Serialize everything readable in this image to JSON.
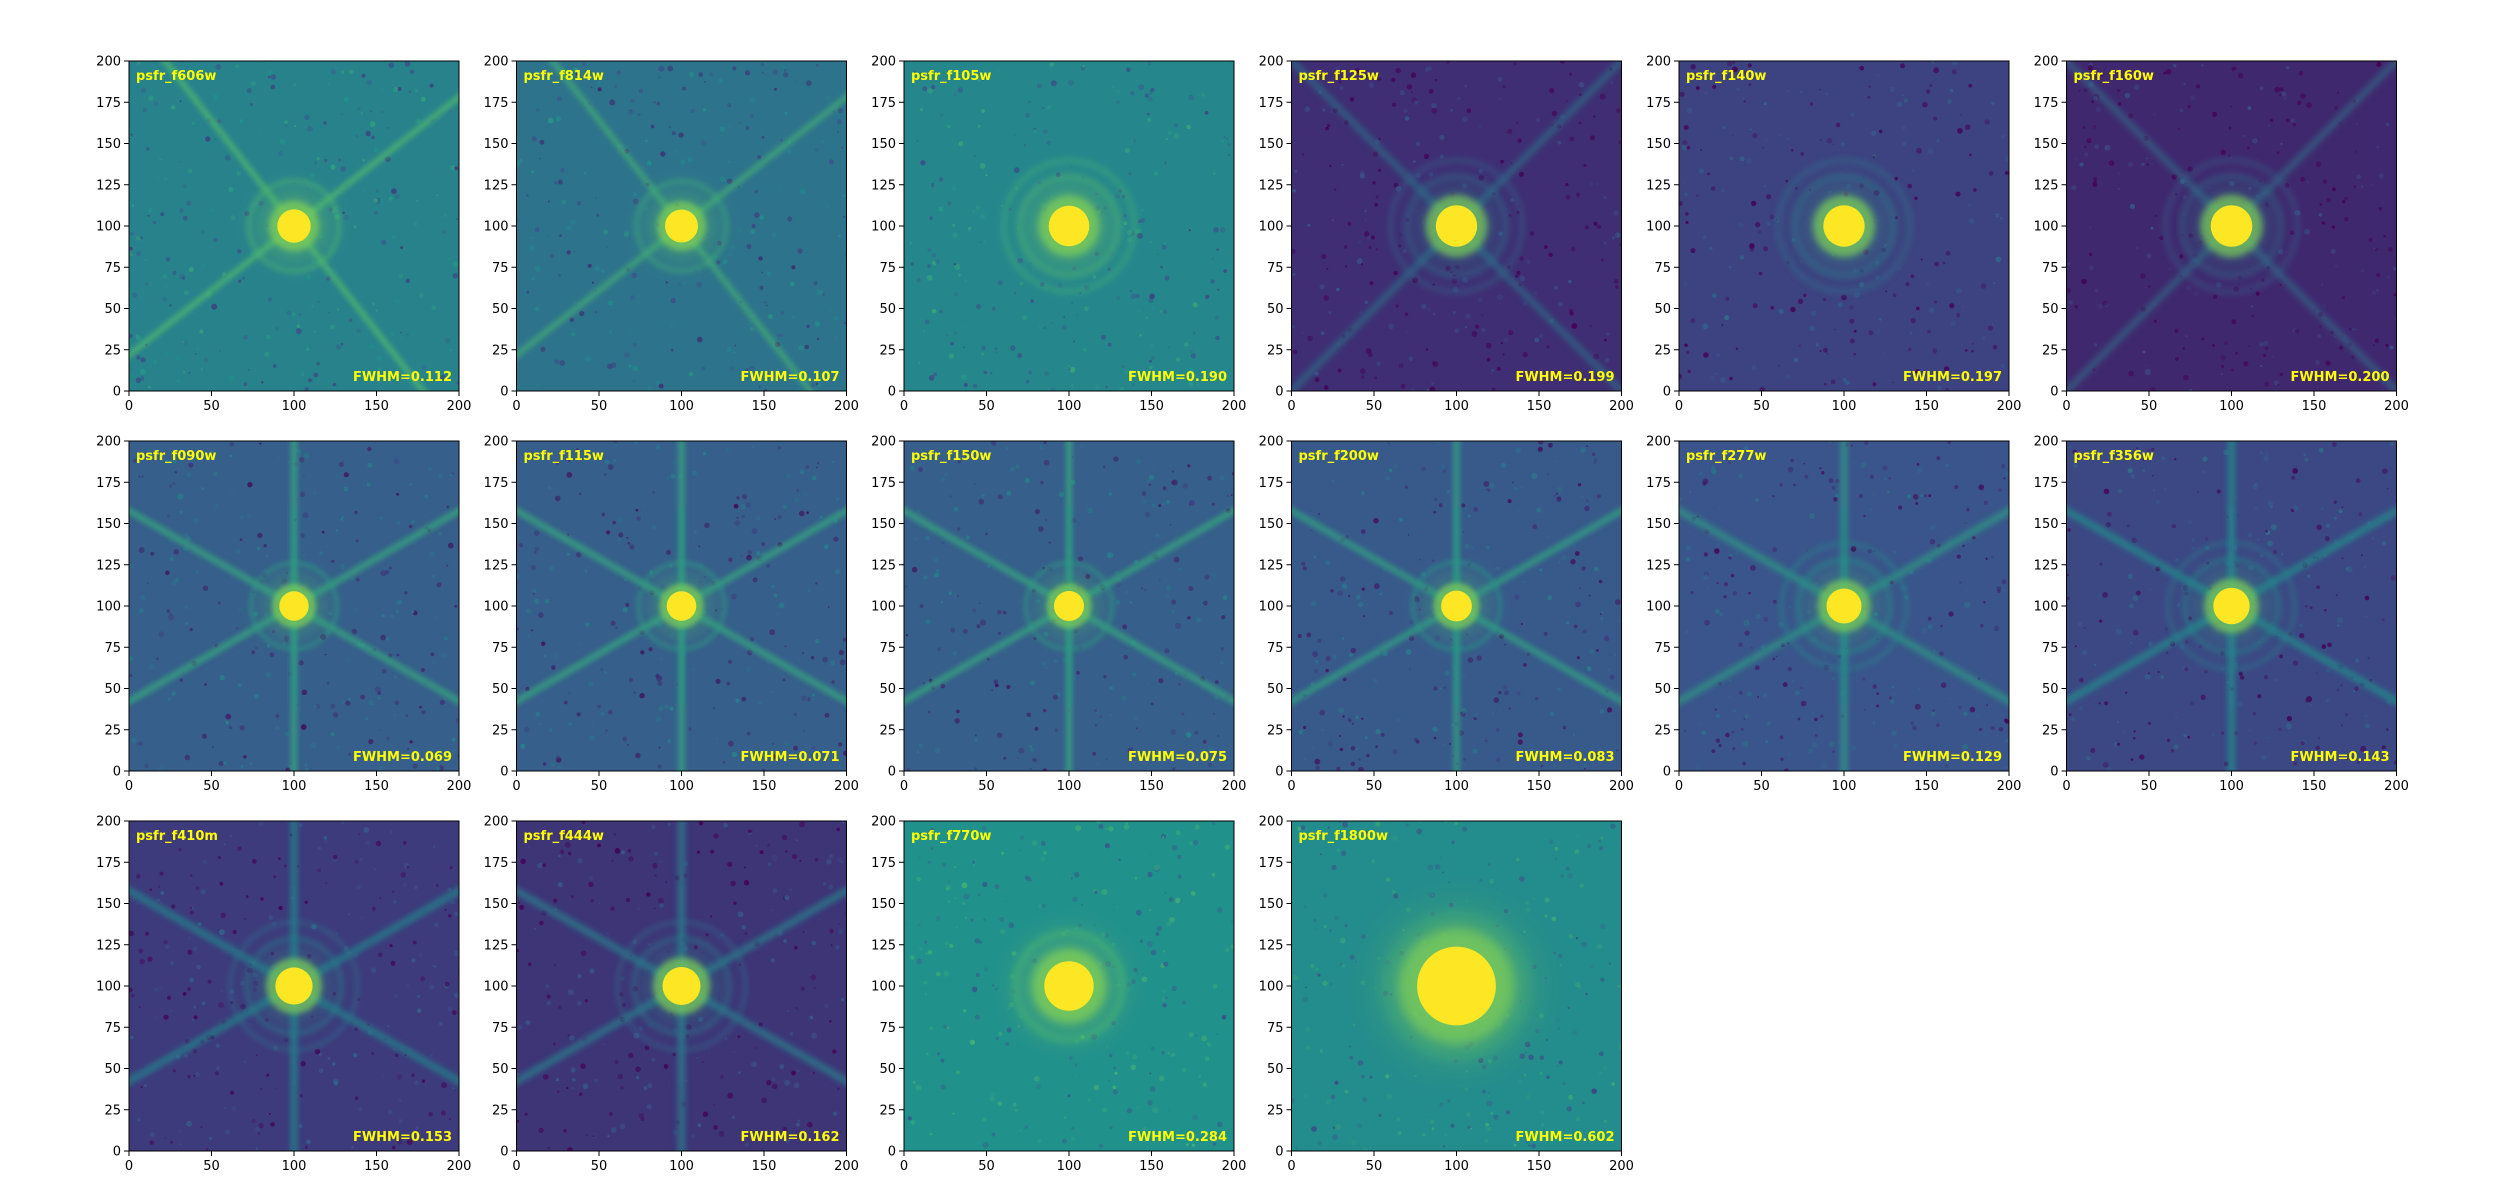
{
  "figure": {
    "label_color": "#ffff00",
    "colormap": [
      "#440154",
      "#3b528b",
      "#21918c",
      "#5ec962",
      "#fde725"
    ]
  },
  "chart_data": [
    {
      "type": "heatmap",
      "name": "psfr_f606w",
      "fwhm_label": "FWHM=0.112",
      "fwhm": 0.112,
      "xlim": [
        0,
        200
      ],
      "ylim": [
        0,
        200
      ],
      "xticks": [
        0,
        50,
        100,
        150,
        200
      ],
      "yticks": [
        0,
        25,
        50,
        75,
        100,
        125,
        150,
        175,
        200
      ],
      "center": [
        100,
        100
      ],
      "spikes": 4,
      "spike_angle_deg": 38,
      "background": 0.44
    },
    {
      "type": "heatmap",
      "name": "psfr_f814w",
      "fwhm_label": "FWHM=0.107",
      "fwhm": 0.107,
      "xlim": [
        0,
        200
      ],
      "ylim": [
        0,
        200
      ],
      "xticks": [
        0,
        50,
        100,
        150,
        200
      ],
      "yticks": [
        0,
        25,
        50,
        75,
        100,
        125,
        150,
        175,
        200
      ],
      "center": [
        100,
        100
      ],
      "spikes": 4,
      "spike_angle_deg": 38,
      "background": 0.38
    },
    {
      "type": "heatmap",
      "name": "psfr_f105w",
      "fwhm_label": "FWHM=0.190",
      "fwhm": 0.19,
      "xlim": [
        0,
        200
      ],
      "ylim": [
        0,
        200
      ],
      "xticks": [
        0,
        50,
        100,
        150,
        200
      ],
      "yticks": [
        0,
        25,
        50,
        75,
        100,
        125,
        150,
        175,
        200
      ],
      "center": [
        100,
        100
      ],
      "spikes": 0,
      "spike_angle_deg": 45,
      "background": 0.46
    },
    {
      "type": "heatmap",
      "name": "psfr_f125w",
      "fwhm_label": "FWHM=0.199",
      "fwhm": 0.199,
      "xlim": [
        0,
        200
      ],
      "ylim": [
        0,
        200
      ],
      "xticks": [
        0,
        50,
        100,
        150,
        200
      ],
      "yticks": [
        0,
        25,
        50,
        75,
        100,
        125,
        150,
        175,
        200
      ],
      "center": [
        100,
        100
      ],
      "spikes": 4,
      "spike_angle_deg": 45,
      "background": 0.14
    },
    {
      "type": "heatmap",
      "name": "psfr_f140w",
      "fwhm_label": "FWHM=0.197",
      "fwhm": 0.197,
      "xlim": [
        0,
        200
      ],
      "ylim": [
        0,
        200
      ],
      "xticks": [
        0,
        50,
        100,
        150,
        200
      ],
      "yticks": [
        0,
        25,
        50,
        75,
        100,
        125,
        150,
        175,
        200
      ],
      "center": [
        100,
        100
      ],
      "spikes": 0,
      "spike_angle_deg": 45,
      "background": 0.2
    },
    {
      "type": "heatmap",
      "name": "psfr_f160w",
      "fwhm_label": "FWHM=0.200",
      "fwhm": 0.2,
      "xlim": [
        0,
        200
      ],
      "ylim": [
        0,
        200
      ],
      "xticks": [
        0,
        50,
        100,
        150,
        200
      ],
      "yticks": [
        0,
        25,
        50,
        75,
        100,
        125,
        150,
        175,
        200
      ],
      "center": [
        100,
        100
      ],
      "spikes": 4,
      "spike_angle_deg": 45,
      "background": 0.12
    },
    {
      "type": "heatmap",
      "name": "psfr_f090w",
      "fwhm_label": "FWHM=0.069",
      "fwhm": 0.069,
      "xlim": [
        0,
        200
      ],
      "ylim": [
        0,
        200
      ],
      "xticks": [
        0,
        50,
        100,
        150,
        200
      ],
      "yticks": [
        0,
        25,
        50,
        75,
        100,
        125,
        150,
        175,
        200
      ],
      "center": [
        100,
        100
      ],
      "spikes": 6,
      "spike_angle_deg": 30,
      "background": 0.3
    },
    {
      "type": "heatmap",
      "name": "psfr_f115w",
      "fwhm_label": "FWHM=0.071",
      "fwhm": 0.071,
      "xlim": [
        0,
        200
      ],
      "ylim": [
        0,
        200
      ],
      "xticks": [
        0,
        50,
        100,
        150,
        200
      ],
      "yticks": [
        0,
        25,
        50,
        75,
        100,
        125,
        150,
        175,
        200
      ],
      "center": [
        100,
        100
      ],
      "spikes": 6,
      "spike_angle_deg": 30,
      "background": 0.3
    },
    {
      "type": "heatmap",
      "name": "psfr_f150w",
      "fwhm_label": "FWHM=0.075",
      "fwhm": 0.075,
      "xlim": [
        0,
        200
      ],
      "ylim": [
        0,
        200
      ],
      "xticks": [
        0,
        50,
        100,
        150,
        200
      ],
      "yticks": [
        0,
        25,
        50,
        75,
        100,
        125,
        150,
        175,
        200
      ],
      "center": [
        100,
        100
      ],
      "spikes": 6,
      "spike_angle_deg": 30,
      "background": 0.3
    },
    {
      "type": "heatmap",
      "name": "psfr_f200w",
      "fwhm_label": "FWHM=0.083",
      "fwhm": 0.083,
      "xlim": [
        0,
        200
      ],
      "ylim": [
        0,
        200
      ],
      "xticks": [
        0,
        50,
        100,
        150,
        200
      ],
      "yticks": [
        0,
        25,
        50,
        75,
        100,
        125,
        150,
        175,
        200
      ],
      "center": [
        100,
        100
      ],
      "spikes": 6,
      "spike_angle_deg": 30,
      "background": 0.28
    },
    {
      "type": "heatmap",
      "name": "psfr_f277w",
      "fwhm_label": "FWHM=0.129",
      "fwhm": 0.129,
      "xlim": [
        0,
        200
      ],
      "ylim": [
        0,
        200
      ],
      "xticks": [
        0,
        50,
        100,
        150,
        200
      ],
      "yticks": [
        0,
        25,
        50,
        75,
        100,
        125,
        150,
        175,
        200
      ],
      "center": [
        100,
        100
      ],
      "spikes": 6,
      "spike_angle_deg": 30,
      "background": 0.26
    },
    {
      "type": "heatmap",
      "name": "psfr_f356w",
      "fwhm_label": "FWHM=0.143",
      "fwhm": 0.143,
      "xlim": [
        0,
        200
      ],
      "ylim": [
        0,
        200
      ],
      "xticks": [
        0,
        50,
        100,
        150,
        200
      ],
      "yticks": [
        0,
        25,
        50,
        75,
        100,
        125,
        150,
        175,
        200
      ],
      "center": [
        100,
        100
      ],
      "spikes": 6,
      "spike_angle_deg": 30,
      "background": 0.22
    },
    {
      "type": "heatmap",
      "name": "psfr_f410m",
      "fwhm_label": "FWHM=0.153",
      "fwhm": 0.153,
      "xlim": [
        0,
        200
      ],
      "ylim": [
        0,
        200
      ],
      "xticks": [
        0,
        50,
        100,
        150,
        200
      ],
      "yticks": [
        0,
        25,
        50,
        75,
        100,
        125,
        150,
        175,
        200
      ],
      "center": [
        100,
        100
      ],
      "spikes": 6,
      "spike_angle_deg": 30,
      "background": 0.18
    },
    {
      "type": "heatmap",
      "name": "psfr_f444w",
      "fwhm_label": "FWHM=0.162",
      "fwhm": 0.162,
      "xlim": [
        0,
        200
      ],
      "ylim": [
        0,
        200
      ],
      "xticks": [
        0,
        50,
        100,
        150,
        200
      ],
      "yticks": [
        0,
        25,
        50,
        75,
        100,
        125,
        150,
        175,
        200
      ],
      "center": [
        100,
        100
      ],
      "spikes": 6,
      "spike_angle_deg": 30,
      "background": 0.16
    },
    {
      "type": "heatmap",
      "name": "psfr_f770w",
      "fwhm_label": "FWHM=0.284",
      "fwhm": 0.284,
      "xlim": [
        0,
        200
      ],
      "ylim": [
        0,
        200
      ],
      "xticks": [
        0,
        50,
        100,
        150,
        200
      ],
      "yticks": [
        0,
        25,
        50,
        75,
        100,
        125,
        150,
        175,
        200
      ],
      "center": [
        100,
        100
      ],
      "spikes": 0,
      "spike_angle_deg": 30,
      "background": 0.5
    },
    {
      "type": "heatmap",
      "name": "psfr_f1800w",
      "fwhm_label": "FWHM=0.602",
      "fwhm": 0.602,
      "xlim": [
        0,
        200
      ],
      "ylim": [
        0,
        200
      ],
      "xticks": [
        0,
        50,
        100,
        150,
        200
      ],
      "yticks": [
        0,
        25,
        50,
        75,
        100,
        125,
        150,
        175,
        200
      ],
      "center": [
        100,
        100
      ],
      "spikes": 0,
      "spike_angle_deg": 30,
      "background": 0.48
    }
  ]
}
